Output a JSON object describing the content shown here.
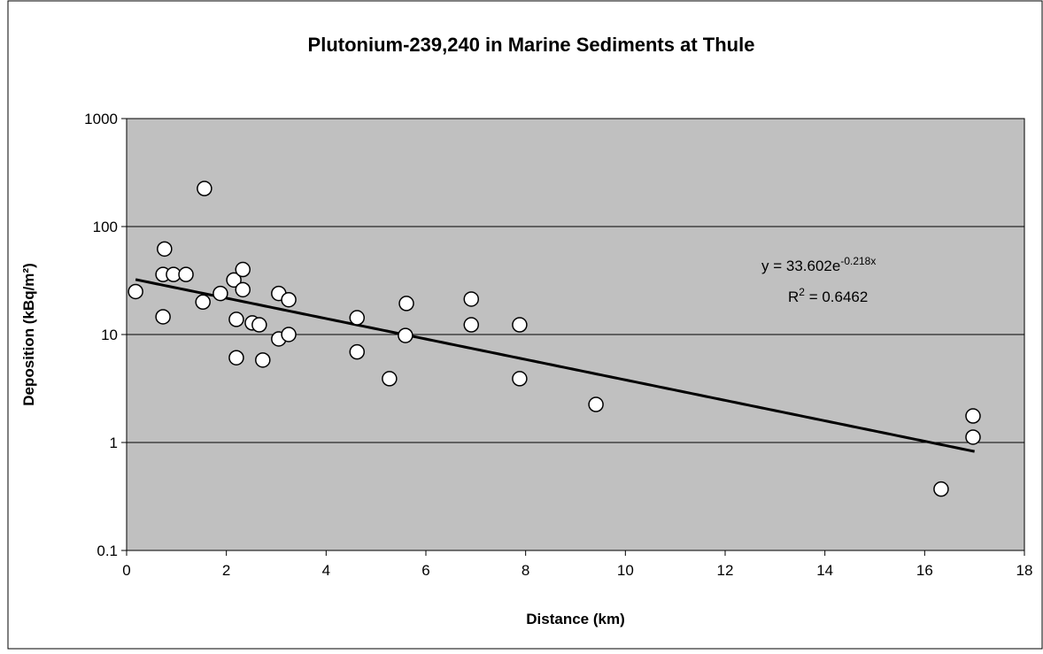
{
  "chart_data": {
    "type": "scatter",
    "title": "Plutonium-239,240 in Marine Sediments at Thule",
    "x_label": "Distance (km)",
    "y_label": "Deposition (kBq/m²)",
    "x": [
      0.18,
      0.76,
      0.73,
      0.94,
      1.19,
      0.73,
      1.56,
      1.53,
      1.88,
      2.15,
      2.33,
      2.33,
      2.2,
      2.2,
      2.52,
      2.66,
      2.73,
      3.05,
      3.25,
      3.05,
      3.25,
      4.62,
      4.62,
      5.27,
      5.61,
      5.59,
      6.91,
      6.91,
      7.88,
      7.88,
      9.41,
      16.33,
      16.97,
      16.97
    ],
    "values": [
      25,
      62,
      36,
      36,
      36,
      14.6,
      225,
      20,
      24,
      32,
      40,
      26,
      13.8,
      6.1,
      12.8,
      12.3,
      5.8,
      24,
      21,
      9.1,
      10,
      14.3,
      6.9,
      3.9,
      19.4,
      9.8,
      21.3,
      12.3,
      12.3,
      3.9,
      2.25,
      0.37,
      1.76,
      1.12
    ],
    "marker_color": "#ffffff",
    "xlim": [
      0,
      18
    ],
    "xticks": [
      0,
      2,
      4,
      6,
      8,
      10,
      12,
      14,
      16,
      18
    ],
    "ylim": [
      0.1,
      1000
    ],
    "yticks": [
      0.1,
      1,
      10,
      100,
      1000
    ],
    "y_scale": "log",
    "grid": true,
    "plot_background": "#c0c0c0",
    "trendline": {
      "model": "exponential",
      "coefficient": 33.602,
      "rate": -0.218,
      "x_range": [
        0.18,
        17
      ],
      "equation": "y = 33.602e",
      "equation_exponent": "-0.218x",
      "r2_symbol": "R",
      "r2_superscript": "2",
      "r2_value": " = 0.6462"
    }
  }
}
